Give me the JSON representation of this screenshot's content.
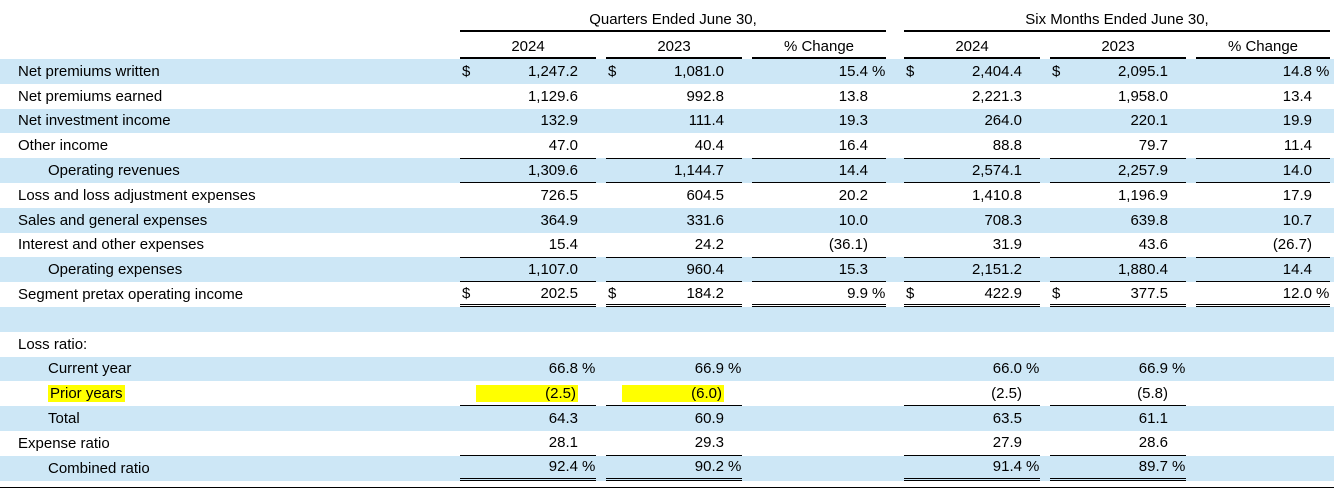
{
  "colors": {
    "row_shade": "#cde7f6",
    "highlight": "#ffff00",
    "rule": "#000000"
  },
  "header": {
    "groups": [
      {
        "title": "Quarters Ended June 30,"
      },
      {
        "title": "Six Months Ended June 30,"
      }
    ],
    "columns": [
      "2024",
      "2023",
      "% Change"
    ]
  },
  "rows": [
    {
      "name": "net-premiums-written",
      "label": "Net premiums written",
      "shade": true,
      "cells": [
        {
          "d": "$",
          "v": "1,247.2"
        },
        {
          "d": "$",
          "v": "1,081.0"
        },
        {
          "v": "15.4",
          "s": "%"
        },
        {
          "d": "$",
          "v": "2,404.4"
        },
        {
          "d": "$",
          "v": "2,095.1"
        },
        {
          "v": "14.8",
          "s": "%"
        }
      ]
    },
    {
      "name": "net-premiums-earned",
      "label": "Net premiums earned",
      "shade": false,
      "cells": [
        {
          "v": "1,129.6"
        },
        {
          "v": "992.8"
        },
        {
          "v": "13.8"
        },
        {
          "v": "2,221.3"
        },
        {
          "v": "1,958.0"
        },
        {
          "v": "13.4"
        }
      ]
    },
    {
      "name": "net-investment-income",
      "label": "Net investment income",
      "shade": true,
      "cells": [
        {
          "v": "132.9"
        },
        {
          "v": "111.4"
        },
        {
          "v": "19.3"
        },
        {
          "v": "264.0"
        },
        {
          "v": "220.1"
        },
        {
          "v": "19.9"
        }
      ]
    },
    {
      "name": "other-income",
      "label": "Other income",
      "shade": false,
      "cells": [
        {
          "v": "47.0"
        },
        {
          "v": "40.4"
        },
        {
          "v": "16.4"
        },
        {
          "v": "88.8"
        },
        {
          "v": "79.7"
        },
        {
          "v": "11.4"
        }
      ]
    },
    {
      "name": "operating-revenues",
      "label": "Operating revenues",
      "indent": true,
      "shade": true,
      "top": "all",
      "bottom": "single-all",
      "cells": [
        {
          "v": "1,309.6"
        },
        {
          "v": "1,144.7"
        },
        {
          "v": "14.4"
        },
        {
          "v": "2,574.1"
        },
        {
          "v": "2,257.9"
        },
        {
          "v": "14.0"
        }
      ]
    },
    {
      "name": "loss-and-loss-adjustment-expenses",
      "label": "Loss and loss adjustment expenses",
      "shade": false,
      "cells": [
        {
          "v": "726.5"
        },
        {
          "v": "604.5"
        },
        {
          "v": "20.2"
        },
        {
          "v": "1,410.8"
        },
        {
          "v": "1,196.9"
        },
        {
          "v": "17.9"
        }
      ]
    },
    {
      "name": "sales-and-general-expenses",
      "label": "Sales and general expenses",
      "shade": true,
      "cells": [
        {
          "v": "364.9"
        },
        {
          "v": "331.6"
        },
        {
          "v": "10.0"
        },
        {
          "v": "708.3"
        },
        {
          "v": "639.8"
        },
        {
          "v": "10.7"
        }
      ]
    },
    {
      "name": "interest-and-other-expenses",
      "label": "Interest and other expenses",
      "shade": false,
      "cells": [
        {
          "v": "15.4"
        },
        {
          "v": "24.2"
        },
        {
          "v": "(36.1)"
        },
        {
          "v": "31.9"
        },
        {
          "v": "43.6"
        },
        {
          "v": "(26.7)"
        }
      ]
    },
    {
      "name": "operating-expenses",
      "label": "Operating expenses",
      "indent": true,
      "shade": true,
      "top": "all",
      "bottom": "single-all",
      "cells": [
        {
          "v": "1,107.0"
        },
        {
          "v": "960.4"
        },
        {
          "v": "15.3"
        },
        {
          "v": "2,151.2"
        },
        {
          "v": "1,880.4"
        },
        {
          "v": "14.4"
        }
      ]
    },
    {
      "name": "segment-pretax-operating-income",
      "label": "Segment pretax operating income",
      "shade": false,
      "bottom": "double-all",
      "cells": [
        {
          "d": "$",
          "v": "202.5"
        },
        {
          "d": "$",
          "v": "184.2"
        },
        {
          "v": "9.9",
          "s": "%"
        },
        {
          "d": "$",
          "v": "422.9"
        },
        {
          "d": "$",
          "v": "377.5"
        },
        {
          "v": "12.0",
          "s": "%"
        }
      ]
    },
    {
      "name": "spacer",
      "label": "",
      "shade": true,
      "cells": []
    },
    {
      "name": "loss-ratio-heading",
      "label": "Loss ratio:",
      "shade": false,
      "cells": []
    },
    {
      "name": "loss-ratio-current-year",
      "label": "Current year",
      "indent": true,
      "shade": true,
      "cells": [
        {
          "v": "66.8",
          "s": "%"
        },
        {
          "v": "66.9",
          "s": "%"
        },
        {
          "v": ""
        },
        {
          "v": "66.0",
          "s": "%"
        },
        {
          "v": "66.9",
          "s": "%"
        },
        {
          "v": ""
        }
      ]
    },
    {
      "name": "loss-ratio-prior-years",
      "label": "Prior years",
      "indent": true,
      "shade": false,
      "highlight_label": true,
      "bottom": "single-vals",
      "cells": [
        {
          "v": "(2.5)",
          "hl": true
        },
        {
          "v": "(6.0)",
          "hl": true
        },
        {
          "v": ""
        },
        {
          "v": "(2.5)"
        },
        {
          "v": "(5.8)"
        },
        {
          "v": ""
        }
      ]
    },
    {
      "name": "loss-ratio-total",
      "label": "Total",
      "indent": true,
      "shade": true,
      "cells": [
        {
          "v": "64.3"
        },
        {
          "v": "60.9"
        },
        {
          "v": ""
        },
        {
          "v": "63.5"
        },
        {
          "v": "61.1"
        },
        {
          "v": ""
        }
      ]
    },
    {
      "name": "expense-ratio",
      "label": "Expense ratio",
      "shade": false,
      "bottom": "single-vals",
      "cells": [
        {
          "v": "28.1"
        },
        {
          "v": "29.3"
        },
        {
          "v": ""
        },
        {
          "v": "27.9"
        },
        {
          "v": "28.6"
        },
        {
          "v": ""
        }
      ]
    },
    {
      "name": "combined-ratio",
      "label": "Combined ratio",
      "indent": true,
      "shade": true,
      "bottom": "double-vals",
      "cells": [
        {
          "v": "92.4",
          "s": "%"
        },
        {
          "v": "90.2",
          "s": "%"
        },
        {
          "v": ""
        },
        {
          "v": "91.4",
          "s": "%"
        },
        {
          "v": "89.7",
          "s": "%"
        },
        {
          "v": ""
        }
      ]
    }
  ]
}
